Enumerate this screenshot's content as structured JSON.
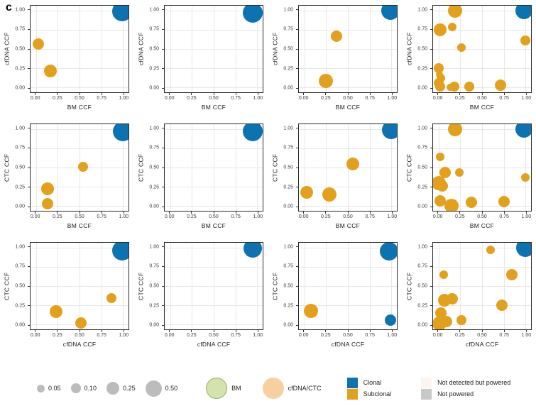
{
  "figure_label": "c",
  "colors": {
    "clonal": "#0D72B0",
    "subclonal": "#E3A01C",
    "grid": "#e7e7e7",
    "legend_gray": "#bcbcbc",
    "bm_fill": "#d4e3ab",
    "bm_stroke": "#93b161",
    "cfdna_ctc_fill": "#f8d0a0",
    "not_detected_fill": "#fdf4f0",
    "not_powered_fill": "#c8c8c8"
  },
  "axes": {
    "tick_labels": [
      "0.00",
      "0.25",
      "0.50",
      "0.75",
      "1.00"
    ],
    "tick_values": [
      0,
      0.25,
      0.5,
      0.75,
      1
    ]
  },
  "chart_data": [
    {
      "type": "scatter",
      "xlabel": "BM CCF",
      "ylabel": "cfDNA CCF",
      "xlim": [
        0,
        1
      ],
      "ylim": [
        0,
        1
      ],
      "points": [
        {
          "x": 0.99,
          "y": 0.99,
          "r": 14,
          "series": "clonal"
        },
        {
          "x": 0.03,
          "y": 0.56,
          "r": 8,
          "series": "subclonal"
        },
        {
          "x": 0.17,
          "y": 0.21,
          "r": 9,
          "series": "subclonal"
        }
      ]
    },
    {
      "type": "scatter",
      "xlabel": "BM CCF",
      "ylabel": "cfDNA CCF",
      "xlim": [
        0,
        1
      ],
      "ylim": [
        0,
        1
      ],
      "points": [
        {
          "x": 0.95,
          "y": 0.97,
          "r": 14,
          "series": "clonal"
        }
      ]
    },
    {
      "type": "scatter",
      "xlabel": "BM CCF",
      "ylabel": "cfDNA CCF",
      "xlim": [
        0,
        1
      ],
      "ylim": [
        0,
        1
      ],
      "points": [
        {
          "x": 0.99,
          "y": 1.0,
          "r": 13,
          "series": "clonal"
        },
        {
          "x": 0.37,
          "y": 0.67,
          "r": 8,
          "series": "subclonal"
        },
        {
          "x": 0.25,
          "y": 0.09,
          "r": 10,
          "series": "subclonal"
        }
      ]
    },
    {
      "type": "scatter",
      "xlabel": "BM CCF",
      "ylabel": "cfDNA CCF",
      "xlim": [
        0,
        1
      ],
      "ylim": [
        0,
        1
      ],
      "points": [
        {
          "x": 0.98,
          "y": 1.0,
          "r": 12,
          "series": "clonal"
        },
        {
          "x": 0.19,
          "y": 1.0,
          "r": 10,
          "series": "subclonal"
        },
        {
          "x": 0.02,
          "y": 0.75,
          "r": 9,
          "series": "subclonal"
        },
        {
          "x": 0.16,
          "y": 0.79,
          "r": 6,
          "series": "subclonal"
        },
        {
          "x": 0.26,
          "y": 0.52,
          "r": 6,
          "series": "subclonal"
        },
        {
          "x": 1.0,
          "y": 0.61,
          "r": 7,
          "series": "subclonal"
        },
        {
          "x": 0.0,
          "y": 0.25,
          "r": 7,
          "series": "subclonal"
        },
        {
          "x": 0.01,
          "y": 0.17,
          "r": 5,
          "series": "subclonal"
        },
        {
          "x": 0.03,
          "y": 0.12,
          "r": 6,
          "series": "subclonal"
        },
        {
          "x": 0.0,
          "y": 0.06,
          "r": 7,
          "series": "subclonal"
        },
        {
          "x": 0.02,
          "y": 0.01,
          "r": 7,
          "series": "subclonal"
        },
        {
          "x": 0.13,
          "y": 0.0,
          "r": 5,
          "series": "subclonal"
        },
        {
          "x": 0.18,
          "y": 0.01,
          "r": 7,
          "series": "subclonal"
        },
        {
          "x": 0.35,
          "y": 0.01,
          "r": 7,
          "series": "subclonal"
        },
        {
          "x": 0.71,
          "y": 0.03,
          "r": 8,
          "series": "subclonal"
        }
      ]
    },
    {
      "type": "scatter",
      "xlabel": "BM CCF",
      "ylabel": "CTC CCF",
      "xlim": [
        0,
        1
      ],
      "ylim": [
        0,
        1
      ],
      "points": [
        {
          "x": 1.0,
          "y": 0.97,
          "r": 14,
          "series": "clonal"
        },
        {
          "x": 0.54,
          "y": 0.51,
          "r": 7,
          "series": "subclonal"
        },
        {
          "x": 0.13,
          "y": 0.22,
          "r": 9,
          "series": "subclonal"
        },
        {
          "x": 0.13,
          "y": 0.03,
          "r": 8,
          "series": "subclonal"
        }
      ]
    },
    {
      "type": "scatter",
      "xlabel": "BM CCF",
      "ylabel": "CTC CCF",
      "xlim": [
        0,
        1
      ],
      "ylim": [
        0,
        1
      ],
      "points": [
        {
          "x": 0.95,
          "y": 0.97,
          "r": 14,
          "series": "clonal"
        }
      ]
    },
    {
      "type": "scatter",
      "xlabel": "BM CCF",
      "ylabel": "CTC CCF",
      "xlim": [
        0,
        1
      ],
      "ylim": [
        0,
        1
      ],
      "points": [
        {
          "x": 1.0,
          "y": 0.99,
          "r": 13,
          "series": "clonal"
        },
        {
          "x": 0.56,
          "y": 0.55,
          "r": 9,
          "series": "subclonal"
        },
        {
          "x": 0.03,
          "y": 0.18,
          "r": 9,
          "series": "subclonal"
        },
        {
          "x": 0.29,
          "y": 0.15,
          "r": 10,
          "series": "subclonal"
        }
      ]
    },
    {
      "type": "scatter",
      "xlabel": "BM CCF",
      "ylabel": "CTC CCF",
      "xlim": [
        0,
        1
      ],
      "ylim": [
        0,
        1
      ],
      "points": [
        {
          "x": 0.98,
          "y": 1.0,
          "r": 12,
          "series": "clonal"
        },
        {
          "x": 0.19,
          "y": 1.0,
          "r": 10,
          "series": "subclonal"
        },
        {
          "x": 0.02,
          "y": 0.64,
          "r": 6,
          "series": "subclonal"
        },
        {
          "x": 0.08,
          "y": 0.44,
          "r": 8,
          "series": "subclonal"
        },
        {
          "x": 0.24,
          "y": 0.44,
          "r": 6,
          "series": "subclonal"
        },
        {
          "x": 1.0,
          "y": 0.37,
          "r": 6,
          "series": "subclonal"
        },
        {
          "x": 0.0,
          "y": 0.3,
          "r": 10,
          "series": "subclonal"
        },
        {
          "x": 0.04,
          "y": 0.26,
          "r": 8,
          "series": "subclonal"
        },
        {
          "x": 0.02,
          "y": 0.07,
          "r": 8,
          "series": "subclonal"
        },
        {
          "x": 0.15,
          "y": 0.0,
          "r": 10,
          "series": "subclonal"
        },
        {
          "x": 0.38,
          "y": 0.05,
          "r": 8,
          "series": "subclonal"
        },
        {
          "x": 0.75,
          "y": 0.06,
          "r": 8,
          "series": "subclonal"
        }
      ]
    },
    {
      "type": "scatter",
      "xlabel": "cfDNA CCF",
      "ylabel": "CTC CCF",
      "xlim": [
        0,
        1
      ],
      "ylim": [
        0,
        1
      ],
      "points": [
        {
          "x": 0.99,
          "y": 0.96,
          "r": 14,
          "series": "clonal"
        },
        {
          "x": 0.87,
          "y": 0.34,
          "r": 7,
          "series": "subclonal"
        },
        {
          "x": 0.23,
          "y": 0.17,
          "r": 9,
          "series": "subclonal"
        },
        {
          "x": 0.52,
          "y": 0.02,
          "r": 8,
          "series": "subclonal"
        }
      ]
    },
    {
      "type": "scatter",
      "xlabel": "cfDNA CCF",
      "ylabel": "CTC CCF",
      "xlim": [
        0,
        1
      ],
      "ylim": [
        0,
        1
      ],
      "points": [
        {
          "x": 0.95,
          "y": 0.99,
          "r": 13,
          "series": "clonal"
        }
      ]
    },
    {
      "type": "scatter",
      "xlabel": "cfDNA CCF",
      "ylabel": "CTC CCF",
      "xlim": [
        0,
        1
      ],
      "ylim": [
        0,
        1
      ],
      "points": [
        {
          "x": 0.97,
          "y": 0.95,
          "r": 13,
          "series": "clonal"
        },
        {
          "x": 0.99,
          "y": 0.06,
          "r": 8,
          "series": "clonal"
        },
        {
          "x": 0.08,
          "y": 0.18,
          "r": 10,
          "series": "subclonal"
        }
      ]
    },
    {
      "type": "scatter",
      "xlabel": "cfDNA CCF",
      "ylabel": "CTC CCF",
      "xlim": [
        0,
        1
      ],
      "ylim": [
        0,
        1
      ],
      "points": [
        {
          "x": 1.0,
          "y": 1.0,
          "r": 13,
          "series": "clonal"
        },
        {
          "x": 0.6,
          "y": 0.97,
          "r": 6,
          "series": "subclonal"
        },
        {
          "x": 0.06,
          "y": 0.65,
          "r": 6,
          "series": "subclonal"
        },
        {
          "x": 0.84,
          "y": 0.65,
          "r": 8,
          "series": "subclonal"
        },
        {
          "x": 0.07,
          "y": 0.32,
          "r": 9,
          "series": "subclonal"
        },
        {
          "x": 0.16,
          "y": 0.33,
          "r": 8,
          "series": "subclonal"
        },
        {
          "x": 0.73,
          "y": 0.25,
          "r": 8,
          "series": "subclonal"
        },
        {
          "x": 0.03,
          "y": 0.15,
          "r": 8,
          "series": "subclonal"
        },
        {
          "x": 0.01,
          "y": 0.01,
          "r": 10,
          "series": "subclonal"
        },
        {
          "x": 0.09,
          "y": 0.04,
          "r": 8,
          "series": "subclonal"
        },
        {
          "x": 0.26,
          "y": 0.06,
          "r": 7,
          "series": "subclonal"
        }
      ]
    }
  ],
  "legend": {
    "sizes": [
      {
        "label": "0.05",
        "d": 11
      },
      {
        "label": "0.10",
        "d": 14
      },
      {
        "label": "0.25",
        "d": 18
      },
      {
        "label": "0.50",
        "d": 23
      }
    ],
    "samples": [
      {
        "label": "BM",
        "fill": "#d4e3ab",
        "stroke": "#93b161"
      },
      {
        "label": "cfDNA/CTC",
        "fill": "#f8d0a0",
        "stroke": "#f8d0a0"
      }
    ],
    "clonality": [
      {
        "label": "Clonal",
        "color": "#0D72B0"
      },
      {
        "label": "Subclonal",
        "color": "#E3A01C"
      }
    ],
    "power": [
      {
        "label": "Not detected but powered",
        "color": "#fdf4f0"
      },
      {
        "label": "Not powered",
        "color": "#c8c8c8"
      }
    ]
  }
}
